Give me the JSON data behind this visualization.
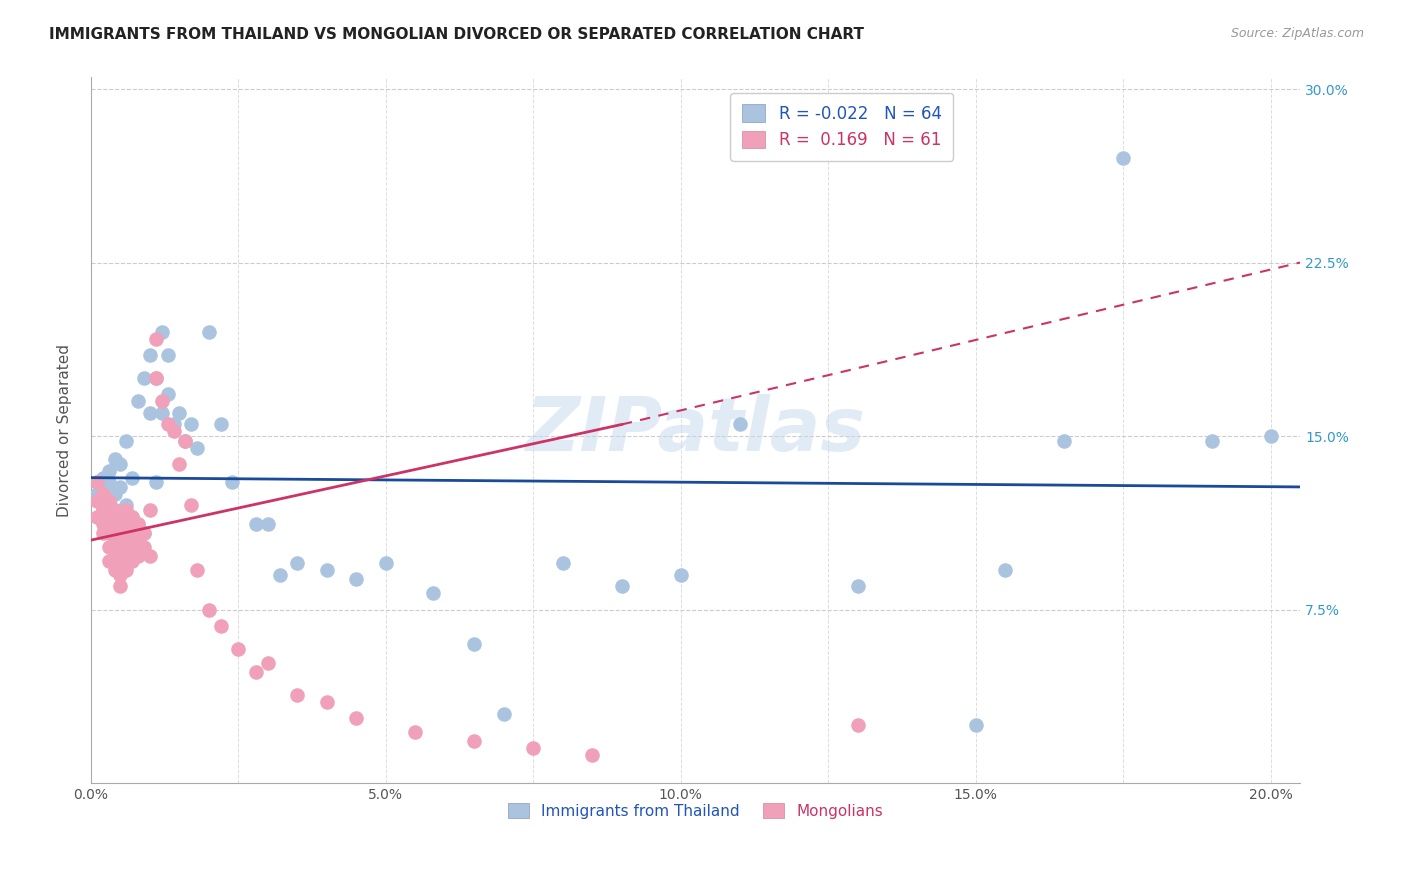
{
  "title": "IMMIGRANTS FROM THAILAND VS MONGOLIAN DIVORCED OR SEPARATED CORRELATION CHART",
  "source": "Source: ZipAtlas.com",
  "ylabel": "Divorced or Separated",
  "xlim": [
    0.0,
    0.205
  ],
  "ylim": [
    0.0,
    0.305
  ],
  "legend_blue_R": "-0.022",
  "legend_blue_N": "64",
  "legend_pink_R": "0.169",
  "legend_pink_N": "61",
  "blue_color": "#aac4e0",
  "pink_color": "#f0a0b8",
  "blue_line_color": "#1a4a9a",
  "pink_line_color": "#cc3366",
  "watermark": "ZIPatlas",
  "blue_scatter_x": [
    0.001,
    0.001,
    0.002,
    0.002,
    0.002,
    0.003,
    0.003,
    0.003,
    0.003,
    0.004,
    0.004,
    0.004,
    0.004,
    0.005,
    0.005,
    0.005,
    0.005,
    0.006,
    0.006,
    0.006,
    0.007,
    0.007,
    0.007,
    0.008,
    0.008,
    0.009,
    0.009,
    0.01,
    0.01,
    0.011,
    0.011,
    0.012,
    0.012,
    0.013,
    0.013,
    0.014,
    0.015,
    0.016,
    0.017,
    0.018,
    0.02,
    0.022,
    0.024,
    0.028,
    0.03,
    0.032,
    0.035,
    0.04,
    0.045,
    0.05,
    0.058,
    0.065,
    0.07,
    0.08,
    0.09,
    0.1,
    0.11,
    0.13,
    0.15,
    0.155,
    0.165,
    0.175,
    0.19,
    0.2
  ],
  "blue_scatter_y": [
    0.13,
    0.125,
    0.128,
    0.118,
    0.132,
    0.115,
    0.122,
    0.13,
    0.135,
    0.112,
    0.118,
    0.125,
    0.14,
    0.108,
    0.116,
    0.128,
    0.138,
    0.11,
    0.12,
    0.148,
    0.105,
    0.115,
    0.132,
    0.112,
    0.165,
    0.108,
    0.175,
    0.16,
    0.185,
    0.13,
    0.175,
    0.16,
    0.195,
    0.168,
    0.185,
    0.155,
    0.16,
    0.148,
    0.155,
    0.145,
    0.195,
    0.155,
    0.13,
    0.112,
    0.112,
    0.09,
    0.095,
    0.092,
    0.088,
    0.095,
    0.082,
    0.06,
    0.03,
    0.095,
    0.085,
    0.09,
    0.155,
    0.085,
    0.025,
    0.092,
    0.148,
    0.27,
    0.148,
    0.15
  ],
  "pink_scatter_x": [
    0.001,
    0.001,
    0.001,
    0.002,
    0.002,
    0.002,
    0.002,
    0.003,
    0.003,
    0.003,
    0.003,
    0.003,
    0.004,
    0.004,
    0.004,
    0.004,
    0.004,
    0.005,
    0.005,
    0.005,
    0.005,
    0.005,
    0.005,
    0.006,
    0.006,
    0.006,
    0.006,
    0.006,
    0.007,
    0.007,
    0.007,
    0.007,
    0.008,
    0.008,
    0.008,
    0.009,
    0.009,
    0.01,
    0.01,
    0.011,
    0.011,
    0.012,
    0.013,
    0.014,
    0.015,
    0.016,
    0.017,
    0.018,
    0.02,
    0.022,
    0.025,
    0.028,
    0.03,
    0.035,
    0.04,
    0.045,
    0.055,
    0.065,
    0.075,
    0.085,
    0.13
  ],
  "pink_scatter_y": [
    0.13,
    0.122,
    0.115,
    0.125,
    0.118,
    0.112,
    0.108,
    0.122,
    0.115,
    0.108,
    0.102,
    0.096,
    0.118,
    0.112,
    0.105,
    0.098,
    0.092,
    0.115,
    0.108,
    0.102,
    0.096,
    0.09,
    0.085,
    0.118,
    0.112,
    0.105,
    0.098,
    0.092,
    0.115,
    0.108,
    0.102,
    0.096,
    0.112,
    0.105,
    0.098,
    0.108,
    0.102,
    0.118,
    0.098,
    0.175,
    0.192,
    0.165,
    0.155,
    0.152,
    0.138,
    0.148,
    0.12,
    0.092,
    0.075,
    0.068,
    0.058,
    0.048,
    0.052,
    0.038,
    0.035,
    0.028,
    0.022,
    0.018,
    0.015,
    0.012,
    0.025
  ],
  "blue_line_x": [
    0.0,
    0.205
  ],
  "blue_line_y": [
    0.132,
    0.128
  ],
  "pink_line_x0": 0.0,
  "pink_line_x1_solid": 0.09,
  "pink_line_x2_dashed": 0.205,
  "pink_line_y0": 0.105,
  "pink_line_y1_solid": 0.155,
  "pink_line_y2_dashed": 0.225
}
